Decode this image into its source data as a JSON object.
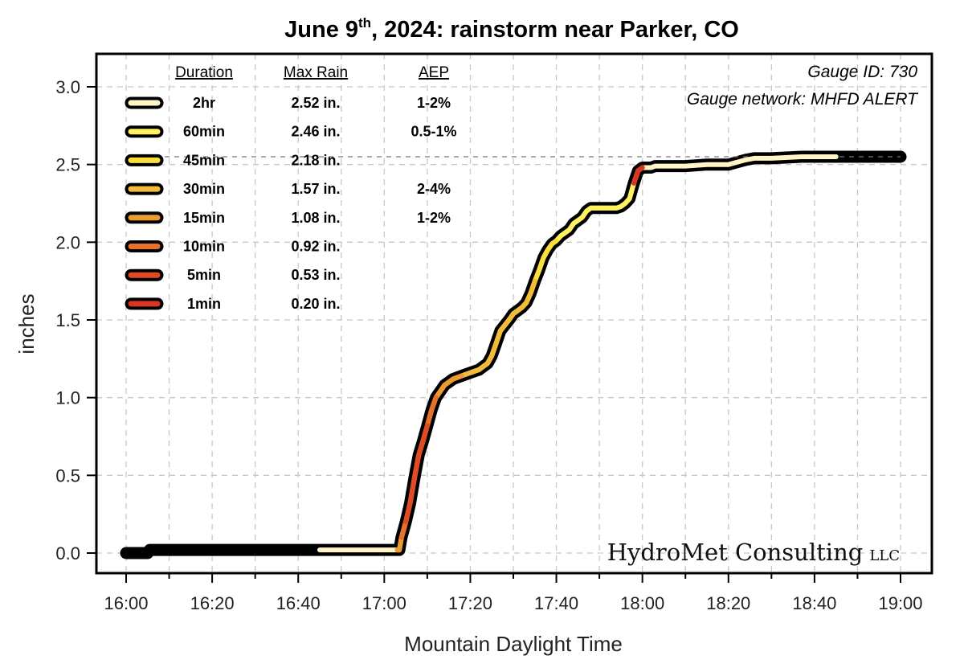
{
  "chart_data": {
    "type": "line",
    "title_main": "June 9",
    "title_sup": "th",
    "title_rest": ", 2024: rainstorm near Parker, CO",
    "xlabel": "Mountain Daylight Time",
    "ylabel": "inches",
    "xlim": [
      960,
      1140
    ],
    "ylim": [
      -0.1,
      3.2
    ],
    "x_ticks": [
      {
        "v": 960,
        "label": "16:00"
      },
      {
        "v": 980,
        "label": "16:20"
      },
      {
        "v": 1000,
        "label": "16:40"
      },
      {
        "v": 1020,
        "label": "17:00"
      },
      {
        "v": 1040,
        "label": "17:20"
      },
      {
        "v": 1060,
        "label": "17:40"
      },
      {
        "v": 1080,
        "label": "18:00"
      },
      {
        "v": 1100,
        "label": "18:20"
      },
      {
        "v": 1120,
        "label": "18:40"
      },
      {
        "v": 1140,
        "label": "19:00"
      }
    ],
    "y_ticks": [
      {
        "v": 0.0,
        "label": "0.0"
      },
      {
        "v": 0.5,
        "label": "0.5"
      },
      {
        "v": 1.0,
        "label": "1.0"
      },
      {
        "v": 1.5,
        "label": "1.5"
      },
      {
        "v": 2.0,
        "label": "2.0"
      },
      {
        "v": 2.5,
        "label": "2.5"
      },
      {
        "v": 3.0,
        "label": "3.0"
      }
    ],
    "grid": true,
    "cumulative_series": {
      "name": "Cumulative rainfall",
      "x": [
        960,
        965,
        965.5,
        990,
        1005,
        1022,
        1023.5,
        1024,
        1025,
        1026,
        1027,
        1028,
        1029,
        1030,
        1031,
        1032,
        1033,
        1034,
        1036,
        1038,
        1040,
        1041,
        1042,
        1043,
        1044,
        1045,
        1046,
        1047,
        1049,
        1050,
        1051,
        1052,
        1053,
        1054,
        1055,
        1056,
        1057,
        1058,
        1059,
        1060,
        1061,
        1062,
        1063,
        1064,
        1066,
        1067,
        1068,
        1069,
        1071,
        1072,
        1073,
        1074,
        1075,
        1076,
        1077,
        1078,
        1079,
        1080,
        1080.5,
        1081,
        1082,
        1083,
        1084,
        1086,
        1090,
        1095,
        1100,
        1104,
        1106,
        1110,
        1117,
        1125,
        1130,
        1135,
        1140
      ],
      "y": [
        0.0,
        0.0,
        0.02,
        0.02,
        0.02,
        0.02,
        0.02,
        0.1,
        0.2,
        0.32,
        0.48,
        0.63,
        0.72,
        0.82,
        0.92,
        1.0,
        1.04,
        1.08,
        1.12,
        1.14,
        1.16,
        1.17,
        1.18,
        1.2,
        1.22,
        1.27,
        1.35,
        1.43,
        1.5,
        1.54,
        1.56,
        1.58,
        1.61,
        1.67,
        1.75,
        1.82,
        1.9,
        1.95,
        1.99,
        2.01,
        2.04,
        2.06,
        2.08,
        2.12,
        2.16,
        2.2,
        2.22,
        2.22,
        2.22,
        2.22,
        2.22,
        2.22,
        2.23,
        2.25,
        2.28,
        2.38,
        2.46,
        2.48,
        2.48,
        2.48,
        2.48,
        2.49,
        2.49,
        2.49,
        2.49,
        2.5,
        2.5,
        2.53,
        2.54,
        2.54,
        2.55,
        2.55,
        2.55,
        2.55,
        2.55
      ]
    },
    "highlighted_windows": [
      {
        "label": "2hr",
        "color": "#FFF5C6",
        "start": 1005,
        "end": 1125
      },
      {
        "label": "60min",
        "color": "#FFF25E",
        "start": 1040,
        "end": 1080
      },
      {
        "label": "45min",
        "color": "#FADF3A",
        "start": 1040,
        "end": 1060
      },
      {
        "label": "30min",
        "color": "#F3BC38",
        "start": 1023,
        "end": 1055
      },
      {
        "label": "15min",
        "color": "#EE9A32",
        "start": 1023,
        "end": 1038
      },
      {
        "label": "10min",
        "color": "#E8702A",
        "start": 1024,
        "end": 1032
      },
      {
        "label": "5min",
        "color": "#E24A26",
        "start": 1025,
        "end": 1030
      },
      {
        "label": "1min",
        "color": "#DA3423",
        "start": 1078,
        "end": 1080
      }
    ]
  },
  "legend": {
    "header_duration": "Duration",
    "header_maxrain": "Max Rain",
    "header_aep": "AEP",
    "rows": [
      {
        "duration": "2hr",
        "max_rain": "2.52 in.",
        "aep": "1-2%",
        "color": "#FFF5C6"
      },
      {
        "duration": "60min",
        "max_rain": "2.46 in.",
        "aep": "0.5-1%",
        "color": "#FFF25E"
      },
      {
        "duration": "45min",
        "max_rain": "2.18 in.",
        "aep": "",
        "color": "#FADF3A"
      },
      {
        "duration": "30min",
        "max_rain": "1.57 in.",
        "aep": "2-4%",
        "color": "#F3BC38"
      },
      {
        "duration": "15min",
        "max_rain": "1.08 in.",
        "aep": "1-2%",
        "color": "#EE9A32"
      },
      {
        "duration": "10min",
        "max_rain": "0.92 in.",
        "aep": "",
        "color": "#E8702A"
      },
      {
        "duration": "5min",
        "max_rain": "0.53 in.",
        "aep": "",
        "color": "#E24A26"
      },
      {
        "duration": "1min",
        "max_rain": "0.20 in.",
        "aep": "",
        "color": "#DA3423"
      }
    ]
  },
  "gauge": {
    "id_text": "Gauge ID: 730",
    "network_text": "Gauge network: MHFD ALERT"
  },
  "watermark": {
    "name": "HydroMet Consulting",
    "suffix": "LLC"
  }
}
